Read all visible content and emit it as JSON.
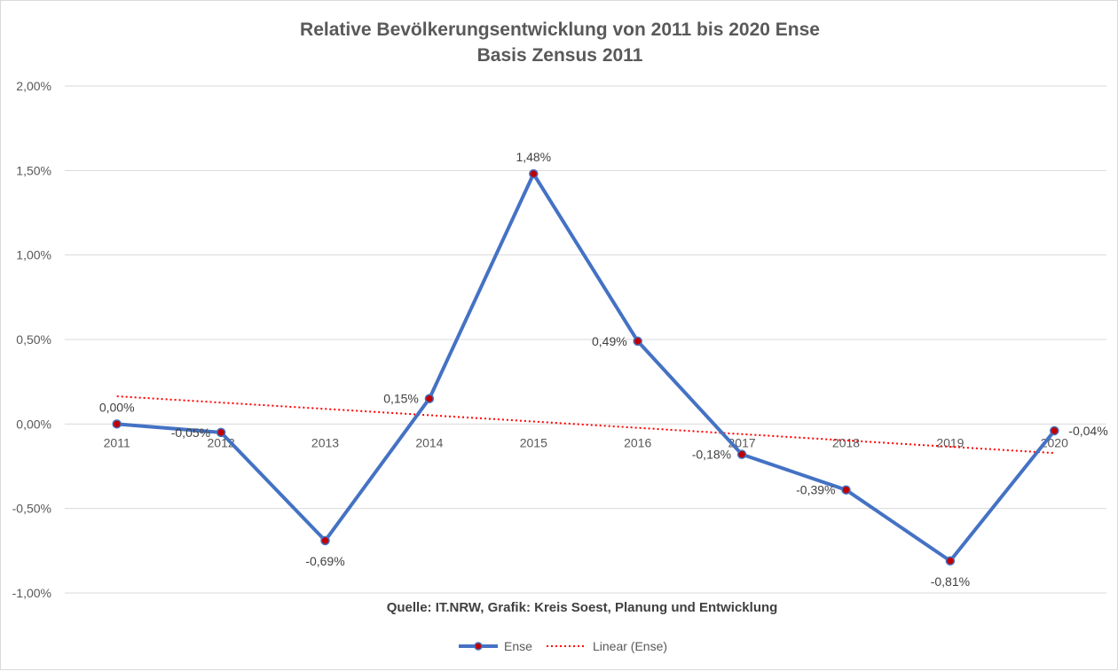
{
  "chart_data": {
    "type": "line",
    "title": "Relative Bevölkerungsentwicklung von 2011 bis 2020 Ense",
    "subtitle": "Basis Zensus 2011",
    "categories": [
      "2011",
      "2012",
      "2013",
      "2014",
      "2015",
      "2016",
      "2017",
      "2018",
      "2019",
      "2020"
    ],
    "series": [
      {
        "name": "Ense",
        "values": [
          0.0,
          -0.05,
          -0.69,
          0.15,
          1.48,
          0.49,
          -0.18,
          -0.39,
          -0.81,
          -0.04
        ],
        "labels": [
          "0,00%",
          "-0,05%",
          "-0,69%",
          "0,15%",
          "1,48%",
          "0,49%",
          "-0,18%",
          "-0,39%",
          "-0,81%",
          "-0,04%"
        ],
        "color": "#4472c4",
        "marker_color": "#c00000"
      }
    ],
    "trendline": {
      "name": "Linear (Ense)",
      "type": "linear",
      "of": "Ense",
      "color": "#ff0000",
      "style": "dotted"
    },
    "ylim": [
      -1.0,
      2.0
    ],
    "yticks": [
      2.0,
      1.5,
      1.0,
      0.5,
      0.0,
      -0.5,
      -1.0
    ],
    "ytick_labels": [
      "2,00%",
      "1,50%",
      "1,00%",
      "0,50%",
      "0,00%",
      "-0,50%",
      "-1,00%"
    ],
    "gridlines": true,
    "legend_position": "bottom",
    "source": "Quelle: IT.NRW, Grafik: Kreis Soest, Planung und Entwicklung"
  }
}
